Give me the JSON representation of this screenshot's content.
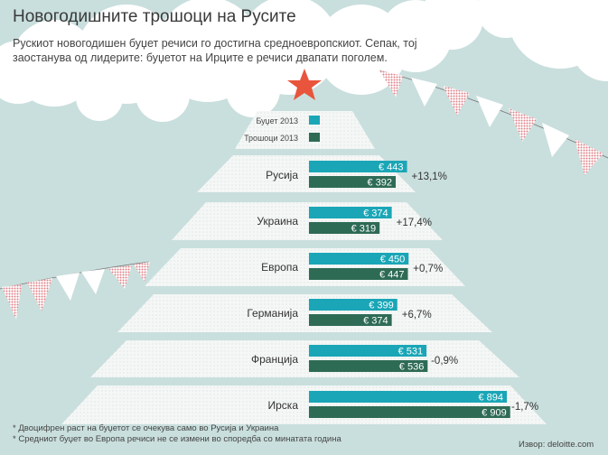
{
  "header": {
    "title": "Новогодишните трошоци на Русите",
    "subtitle": "Рускиот новогодишен буџет речиси го достигна средноевропскиот. Сепак, тој заостанува од лидерите: буџетот на Ирците е речиси двапати поголем."
  },
  "footnotes": [
    "* Двоцифрен раст на буџетот се очекува само во Русија и Украина",
    "* Средниот буџет во Европа речиси не се измени во споредба со минатата година"
  ],
  "source": "Извор: deloitte.com",
  "colors": {
    "budget": "#1aa6b7",
    "spending": "#2e6b55",
    "star": "#e8553c",
    "flag_pink": "#e08a8f",
    "tree": "#eef3f2"
  },
  "chart_data": {
    "type": "bar",
    "orientation": "horizontal",
    "currency": "€",
    "categories": [
      "Русија",
      "Украина",
      "Европа",
      "Германија",
      "Франција",
      "Ирска"
    ],
    "series": [
      {
        "name": "Буџет 2013",
        "values": [
          443,
          374,
          450,
          399,
          531,
          894
        ]
      },
      {
        "name": "Трошоци 2013",
        "values": [
          392,
          319,
          447,
          374,
          536,
          909
        ]
      }
    ],
    "change_labels": [
      "+13,1%",
      "+17,4%",
      "+0,7%",
      "+6,7%",
      "-0,9%",
      "-1,7%"
    ],
    "legend_position": "top-center"
  }
}
